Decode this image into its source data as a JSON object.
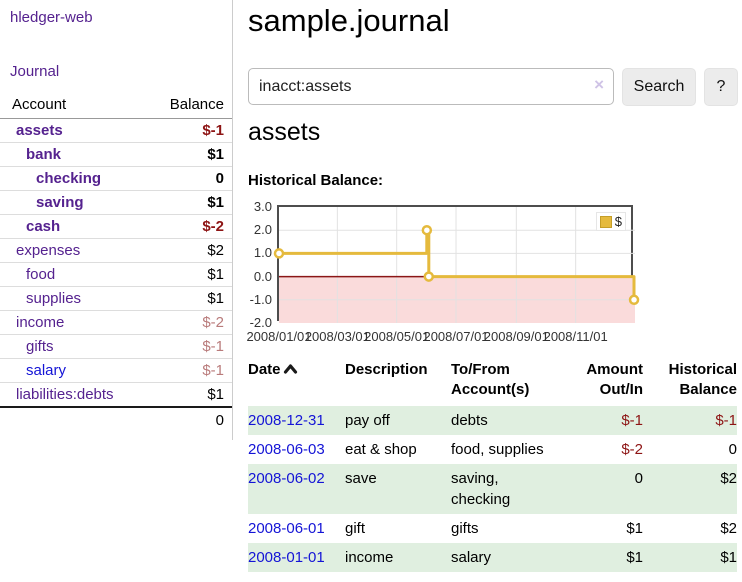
{
  "sidebar": {
    "app_title": "hledger-web",
    "nav": {
      "journal_label": "Journal"
    },
    "accounts_table": {
      "headers": {
        "account": "Account",
        "balance": "Balance"
      },
      "rows": [
        {
          "name": "assets",
          "depth": 1,
          "bold": true,
          "link": "purple",
          "balance": "$-1",
          "balance_class": "neg"
        },
        {
          "name": "bank",
          "depth": 2,
          "bold": true,
          "link": "purple",
          "balance": "$1",
          "balance_class": ""
        },
        {
          "name": "checking",
          "depth": 3,
          "bold": true,
          "link": "purple",
          "balance": "0",
          "balance_class": ""
        },
        {
          "name": "saving",
          "depth": 3,
          "bold": true,
          "link": "purple",
          "balance": "$1",
          "balance_class": ""
        },
        {
          "name": "cash",
          "depth": 2,
          "bold": true,
          "link": "purple",
          "balance": "$-2",
          "balance_class": "neg"
        },
        {
          "name": "expenses",
          "depth": 1,
          "bold": false,
          "link": "purple",
          "balance": "$2",
          "balance_class": ""
        },
        {
          "name": "food",
          "depth": 2,
          "bold": false,
          "link": "purple",
          "balance": "$1",
          "balance_class": ""
        },
        {
          "name": "supplies",
          "depth": 2,
          "bold": false,
          "link": "purple",
          "balance": "$1",
          "balance_class": ""
        },
        {
          "name": "income",
          "depth": 1,
          "bold": false,
          "link": "purple",
          "balance": "$-2",
          "balance_class": "neg-dim"
        },
        {
          "name": "gifts",
          "depth": 2,
          "bold": false,
          "link": "purple",
          "balance": "$-1",
          "balance_class": "neg-dim"
        },
        {
          "name": "salary",
          "depth": 2,
          "bold": false,
          "link": "blue",
          "balance": "$-1",
          "balance_class": "neg-dim"
        },
        {
          "name": "liabilities:debts",
          "depth": 1,
          "bold": false,
          "link": "purple",
          "balance": "$1",
          "balance_class": ""
        }
      ],
      "total": "0"
    }
  },
  "header": {
    "title": "sample.journal"
  },
  "search": {
    "query": "inacct:assets",
    "clear_icon": "×",
    "search_button": "Search",
    "help_button": "?"
  },
  "account_page": {
    "heading": "assets",
    "chart_label": "Historical Balance:"
  },
  "chart_data": {
    "type": "line",
    "title": "Historical Balance:",
    "style": "step",
    "series": [
      {
        "name": "$",
        "points": [
          [
            "2008-01-01",
            1
          ],
          [
            "2008-06-01",
            2
          ],
          [
            "2008-06-03",
            0
          ],
          [
            "2008-12-31",
            -1
          ]
        ]
      }
    ],
    "x_range": [
      "2008-01-01",
      "2009-01-01"
    ],
    "ylim": [
      -2,
      3
    ],
    "yticks": [
      3.0,
      2.0,
      1.0,
      0.0,
      -1.0,
      -2.0
    ],
    "xticks": [
      "2008/01/01",
      "2008/03/01",
      "2008/05/01",
      "2008/07/01",
      "2008/09/01",
      "2008/11/01"
    ],
    "legend": {
      "label": "$",
      "position": "top-right"
    },
    "grid": true,
    "line_color": "#e5ba3d",
    "negative_fill": "#fadbdb",
    "zero_line_color": "#8b1616"
  },
  "register": {
    "columns": {
      "date": "Date",
      "description": "Description",
      "tofrom": "To/From\nAccount(s)",
      "amount": "Amount\nOut/In",
      "balance": "Historical\nBalance"
    },
    "rows": [
      {
        "date": "2008-12-31",
        "description": "pay off",
        "accounts": "debts",
        "amount": "$-1",
        "amount_class": "neg",
        "balance": "$-1",
        "balance_class": "neg",
        "shaded": true
      },
      {
        "date": "2008-06-03",
        "description": "eat & shop",
        "accounts": "food, supplies",
        "amount": "$-2",
        "amount_class": "neg",
        "balance": "0",
        "balance_class": "",
        "shaded": false
      },
      {
        "date": "2008-06-02",
        "description": "save",
        "accounts": "saving, checking",
        "amount": "0",
        "amount_class": "",
        "balance": "$2",
        "balance_class": "",
        "shaded": true
      },
      {
        "date": "2008-06-01",
        "description": "gift",
        "accounts": "gifts",
        "amount": "$1",
        "amount_class": "",
        "balance": "$2",
        "balance_class": "",
        "shaded": false
      },
      {
        "date": "2008-01-01",
        "description": "income",
        "accounts": "salary",
        "amount": "$1",
        "amount_class": "",
        "balance": "$1",
        "balance_class": "",
        "shaded": true
      }
    ]
  },
  "colors": {
    "link_purple": "#55228f",
    "link_blue": "#1414d6",
    "negative_strong": "#8d1414",
    "negative_muted": "#b97b7b",
    "row_green": "#e0efe0",
    "chart_gold": "#e5ba3d",
    "chart_negative_fill": "#fadbdb",
    "chart_zero_line": "#8b1616"
  }
}
